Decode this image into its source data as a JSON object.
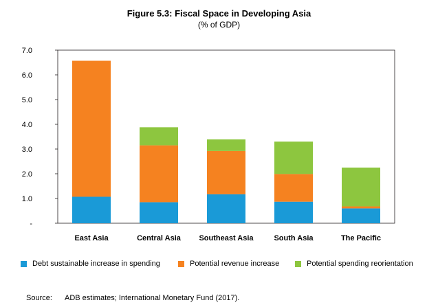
{
  "chart_data": {
    "type": "bar",
    "stacked": true,
    "title": "Figure 5.3: Fiscal Space in Developing Asia",
    "subtitle": "(% of GDP)",
    "categories": [
      "East Asia",
      "Central Asia",
      "Southeast Asia",
      "South Asia",
      "The Pacific"
    ],
    "series": [
      {
        "name": "Debt sustainable increase in spending",
        "color": "#1a9ad7",
        "values": [
          1.07,
          0.85,
          1.17,
          0.87,
          0.6
        ]
      },
      {
        "name": "Potential revenue increase",
        "color": "#f58220",
        "values": [
          5.5,
          2.3,
          1.75,
          1.12,
          0.08
        ]
      },
      {
        "name": "Potential spending reorientation",
        "color": "#8dc63f",
        "values": [
          0.0,
          0.73,
          0.47,
          1.31,
          1.57
        ]
      }
    ],
    "ylim": [
      0,
      7
    ],
    "yticks": [
      "-",
      "1.0",
      "2.0",
      "3.0",
      "4.0",
      "5.0",
      "6.0",
      "7.0"
    ],
    "grid": false,
    "legend": "bottom"
  },
  "source": {
    "label": "Source:",
    "text": "ADB estimates; International Monetary Fund (2017)."
  }
}
